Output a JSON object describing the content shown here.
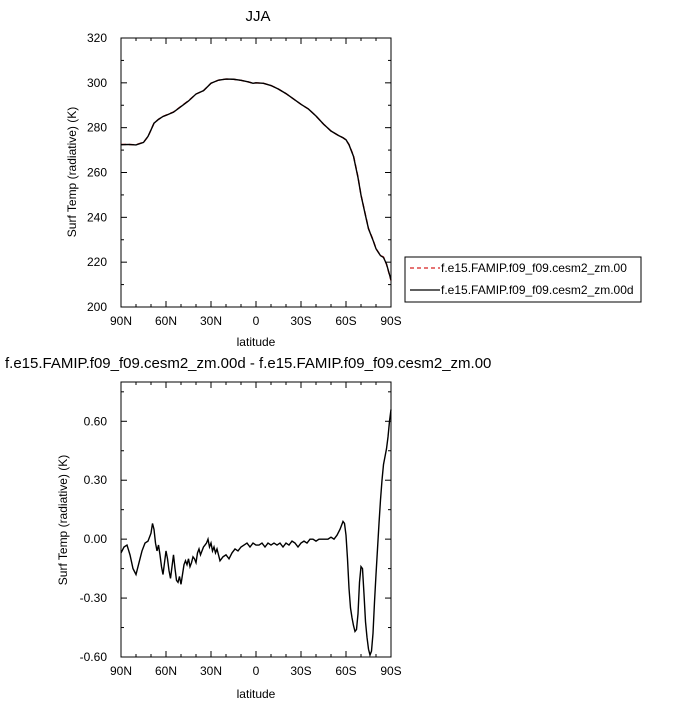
{
  "chart_data": [
    {
      "type": "line",
      "title": "JJA",
      "xlabel": "latitude",
      "ylabel": "Surf Temp (radiative) (K)",
      "xlim": [
        90,
        -90
      ],
      "ylim": [
        200,
        320
      ],
      "x_tick_values": [
        90,
        60,
        30,
        0,
        -30,
        -60,
        -90
      ],
      "x_tick_labels": [
        "90N",
        "60N",
        "30N",
        "0",
        "30S",
        "60S",
        "90S"
      ],
      "y_ticks": [
        200,
        220,
        240,
        260,
        280,
        300,
        320
      ],
      "y_tick_labels": [
        "200",
        "220",
        "240",
        "260",
        "280",
        "300",
        "320"
      ],
      "legend": "right",
      "series": [
        {
          "name": "f.e15.FAMIP.f09_f09.cesm2_zm.00",
          "color": "#d62020",
          "dash": "dashed",
          "x": [
            90,
            85,
            80,
            75,
            72,
            70,
            68,
            65,
            62,
            60,
            55,
            50,
            45,
            40,
            35,
            32,
            30,
            25,
            20,
            15,
            10,
            5,
            2,
            0,
            -5,
            -10,
            -15,
            -20,
            -25,
            -30,
            -35,
            -40,
            -45,
            -50,
            -55,
            -58,
            -60,
            -62,
            -65,
            -68,
            -70,
            -73,
            -75,
            -78,
            -80,
            -83,
            -85,
            -87,
            -90
          ],
          "y": [
            272.5,
            272.5,
            272.4,
            273.5,
            276,
            279,
            282,
            283.7,
            285,
            285.6,
            287,
            289.5,
            292,
            295,
            296.5,
            298.5,
            299.8,
            301.2,
            301.7,
            301.6,
            301.1,
            300.4,
            299.8,
            300,
            299.8,
            298.8,
            297.2,
            295.2,
            292.8,
            290.4,
            288.3,
            285.2,
            281.6,
            278.5,
            276.5,
            275.5,
            274.5,
            272.5,
            267.5,
            258,
            250,
            241,
            235,
            230,
            226,
            223,
            222.3,
            219,
            211.8
          ]
        },
        {
          "name": "f.e15.FAMIP.f09_f09.cesm2_zm.00d",
          "color": "#000000",
          "dash": "solid",
          "x": [
            90,
            85,
            80,
            75,
            72,
            70,
            68,
            65,
            62,
            60,
            55,
            50,
            45,
            40,
            35,
            32,
            30,
            25,
            20,
            15,
            10,
            5,
            2,
            0,
            -5,
            -10,
            -15,
            -20,
            -25,
            -30,
            -35,
            -40,
            -45,
            -50,
            -55,
            -58,
            -60,
            -62,
            -65,
            -68,
            -70,
            -73,
            -75,
            -78,
            -80,
            -83,
            -85,
            -87,
            -90
          ],
          "y": [
            272.4,
            272.5,
            272.3,
            273.4,
            276.1,
            279,
            282,
            283.7,
            285,
            285.5,
            286.9,
            289.4,
            291.9,
            295,
            296.5,
            298.5,
            299.8,
            301.2,
            301.7,
            301.6,
            301.1,
            300.4,
            299.8,
            300,
            299.8,
            298.8,
            297.2,
            295.2,
            292.8,
            290.4,
            288.3,
            285.2,
            281.6,
            278.5,
            276.5,
            275.5,
            274.6,
            272.4,
            267.2,
            257.7,
            249.9,
            240.8,
            234.9,
            229.8,
            226,
            222.9,
            222.1,
            219.2,
            212.1
          ]
        }
      ]
    },
    {
      "type": "line",
      "title": "f.e15.FAMIP.f09_f09.cesm2_zm.00d - f.e15.FAMIP.f09_f09.cesm2_zm.00",
      "xlabel": "latitude",
      "ylabel": "Surf Temp (radiative) (K)",
      "xlim": [
        90,
        -90
      ],
      "ylim": [
        -0.6,
        0.8
      ],
      "x_tick_values": [
        90,
        60,
        30,
        0,
        -30,
        -60,
        -90
      ],
      "x_tick_labels": [
        "90N",
        "60N",
        "30N",
        "0",
        "30S",
        "60S",
        "90S"
      ],
      "y_ticks": [
        -0.6,
        -0.3,
        0,
        0.3,
        0.6
      ],
      "y_tick_labels": [
        "-0.60",
        "-0.30",
        "0.00",
        "0.30",
        "0.60"
      ],
      "series": [
        {
          "color": "#000000",
          "dash": "solid",
          "x": [
            90,
            88,
            86,
            84,
            82,
            80,
            78,
            76,
            74,
            72,
            70,
            69,
            68,
            67,
            66,
            65,
            64,
            63,
            62,
            61,
            60,
            59,
            58,
            57,
            56,
            55,
            54,
            53,
            52,
            51,
            50,
            49,
            48,
            47,
            46,
            45,
            44,
            43,
            42,
            41,
            40,
            39,
            38,
            37,
            36,
            35,
            34,
            33,
            32,
            31,
            30,
            29,
            28,
            27,
            26,
            25,
            24,
            22,
            20,
            18,
            16,
            14,
            12,
            10,
            8,
            6,
            4,
            2,
            0,
            -2,
            -4,
            -6,
            -8,
            -10,
            -12,
            -14,
            -16,
            -18,
            -20,
            -22,
            -24,
            -26,
            -28,
            -30,
            -32,
            -34,
            -36,
            -38,
            -40,
            -42,
            -44,
            -46,
            -48,
            -50,
            -52,
            -54,
            -56,
            -58,
            -59,
            -60,
            -61,
            -62,
            -63,
            -64,
            -65,
            -66,
            -67,
            -68,
            -69,
            -70,
            -71,
            -72,
            -73,
            -74,
            -75,
            -76,
            -77,
            -78,
            -79,
            -80,
            -81,
            -82,
            -83,
            -84,
            -85,
            -86,
            -87,
            -88,
            -89,
            -90
          ],
          "y": [
            -0.07,
            -0.04,
            -0.03,
            -0.08,
            -0.15,
            -0.18,
            -0.12,
            -0.06,
            -0.02,
            -0.01,
            0.03,
            0.08,
            0.05,
            -0.02,
            -0.06,
            -0.03,
            -0.08,
            -0.14,
            -0.18,
            -0.12,
            -0.06,
            -0.1,
            -0.16,
            -0.2,
            -0.14,
            -0.08,
            -0.15,
            -0.21,
            -0.22,
            -0.19,
            -0.23,
            -0.18,
            -0.13,
            -0.11,
            -0.13,
            -0.1,
            -0.14,
            -0.12,
            -0.09,
            -0.1,
            -0.12,
            -0.07,
            -0.05,
            -0.08,
            -0.06,
            -0.04,
            -0.03,
            -0.02,
            0.0,
            -0.04,
            -0.02,
            -0.06,
            -0.04,
            -0.07,
            -0.05,
            -0.08,
            -0.11,
            -0.09,
            -0.08,
            -0.1,
            -0.07,
            -0.05,
            -0.06,
            -0.04,
            -0.03,
            -0.02,
            -0.04,
            -0.02,
            -0.03,
            -0.03,
            -0.02,
            -0.04,
            -0.02,
            -0.03,
            -0.02,
            -0.03,
            -0.02,
            -0.04,
            -0.02,
            -0.03,
            -0.01,
            -0.02,
            -0.04,
            -0.02,
            -0.01,
            -0.02,
            0.0,
            0.0,
            -0.01,
            0.0,
            0.0,
            0.0,
            0.0,
            0.01,
            0.0,
            0.02,
            0.05,
            0.09,
            0.08,
            0.02,
            -0.1,
            -0.25,
            -0.35,
            -0.4,
            -0.44,
            -0.47,
            -0.46,
            -0.38,
            -0.22,
            -0.14,
            -0.15,
            -0.28,
            -0.42,
            -0.5,
            -0.56,
            -0.59,
            -0.57,
            -0.48,
            -0.32,
            -0.18,
            -0.05,
            0.08,
            0.2,
            0.3,
            0.38,
            0.42,
            0.46,
            0.52,
            0.6,
            0.66
          ]
        }
      ]
    }
  ]
}
